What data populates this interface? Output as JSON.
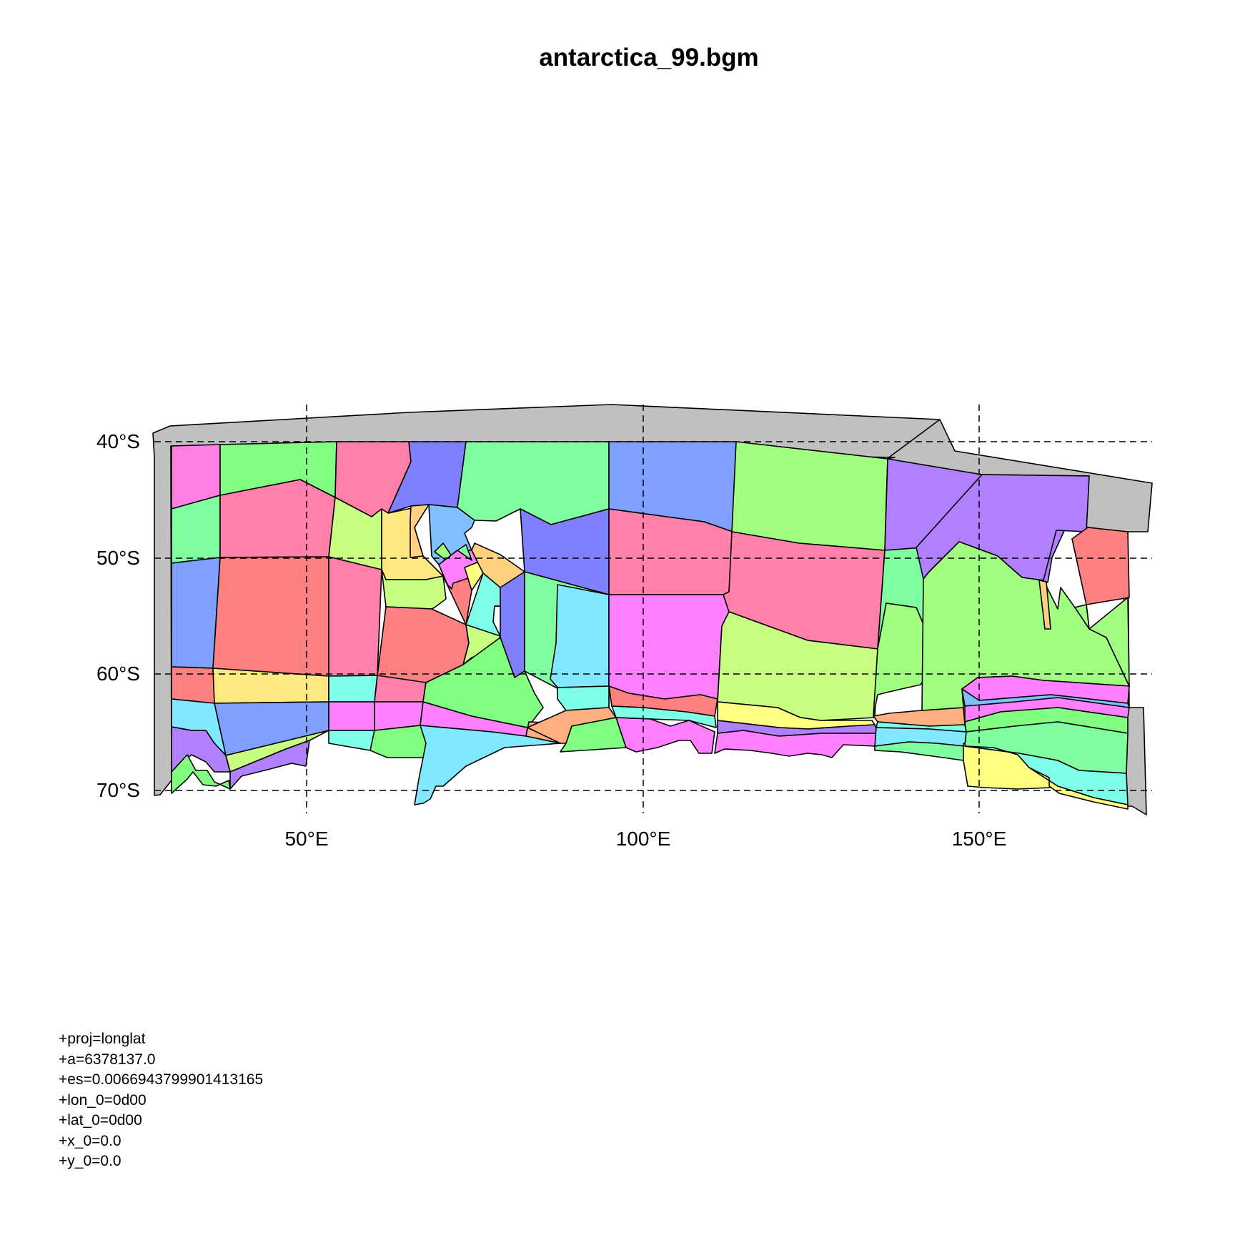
{
  "title": "antarctica_99.bgm",
  "axes": {
    "x_ticks": [
      "50°E",
      "100°E",
      "150°E"
    ],
    "y_ticks": [
      "40°S",
      "50°S",
      "60°S",
      "70°S"
    ],
    "grid": "dashed"
  },
  "colors": {
    "background": "#ffffff",
    "boundary_box": "#c0c0c0",
    "outline": "#000000",
    "palette": [
      "#ff80e0",
      "#80ff80",
      "#ff80a8",
      "#8080ff",
      "#80ffa0",
      "#80a0ff",
      "#a0ff80",
      "#b080ff",
      "#ff8080",
      "#ffe880",
      "#80ffe8",
      "#c8ff80",
      "#ff80ff",
      "#80e8ff",
      "#ffb080",
      "#ffff80",
      "#80c0ff",
      "#ffd080"
    ]
  },
  "projection": [
    "+proj=longlat",
    "+a=6378137.0",
    "+es=0.0066943799901413165",
    "+lon_0=0d00",
    "+lat_0=0d00",
    "+x_0=0.0",
    "+y_0=0.0"
  ]
}
